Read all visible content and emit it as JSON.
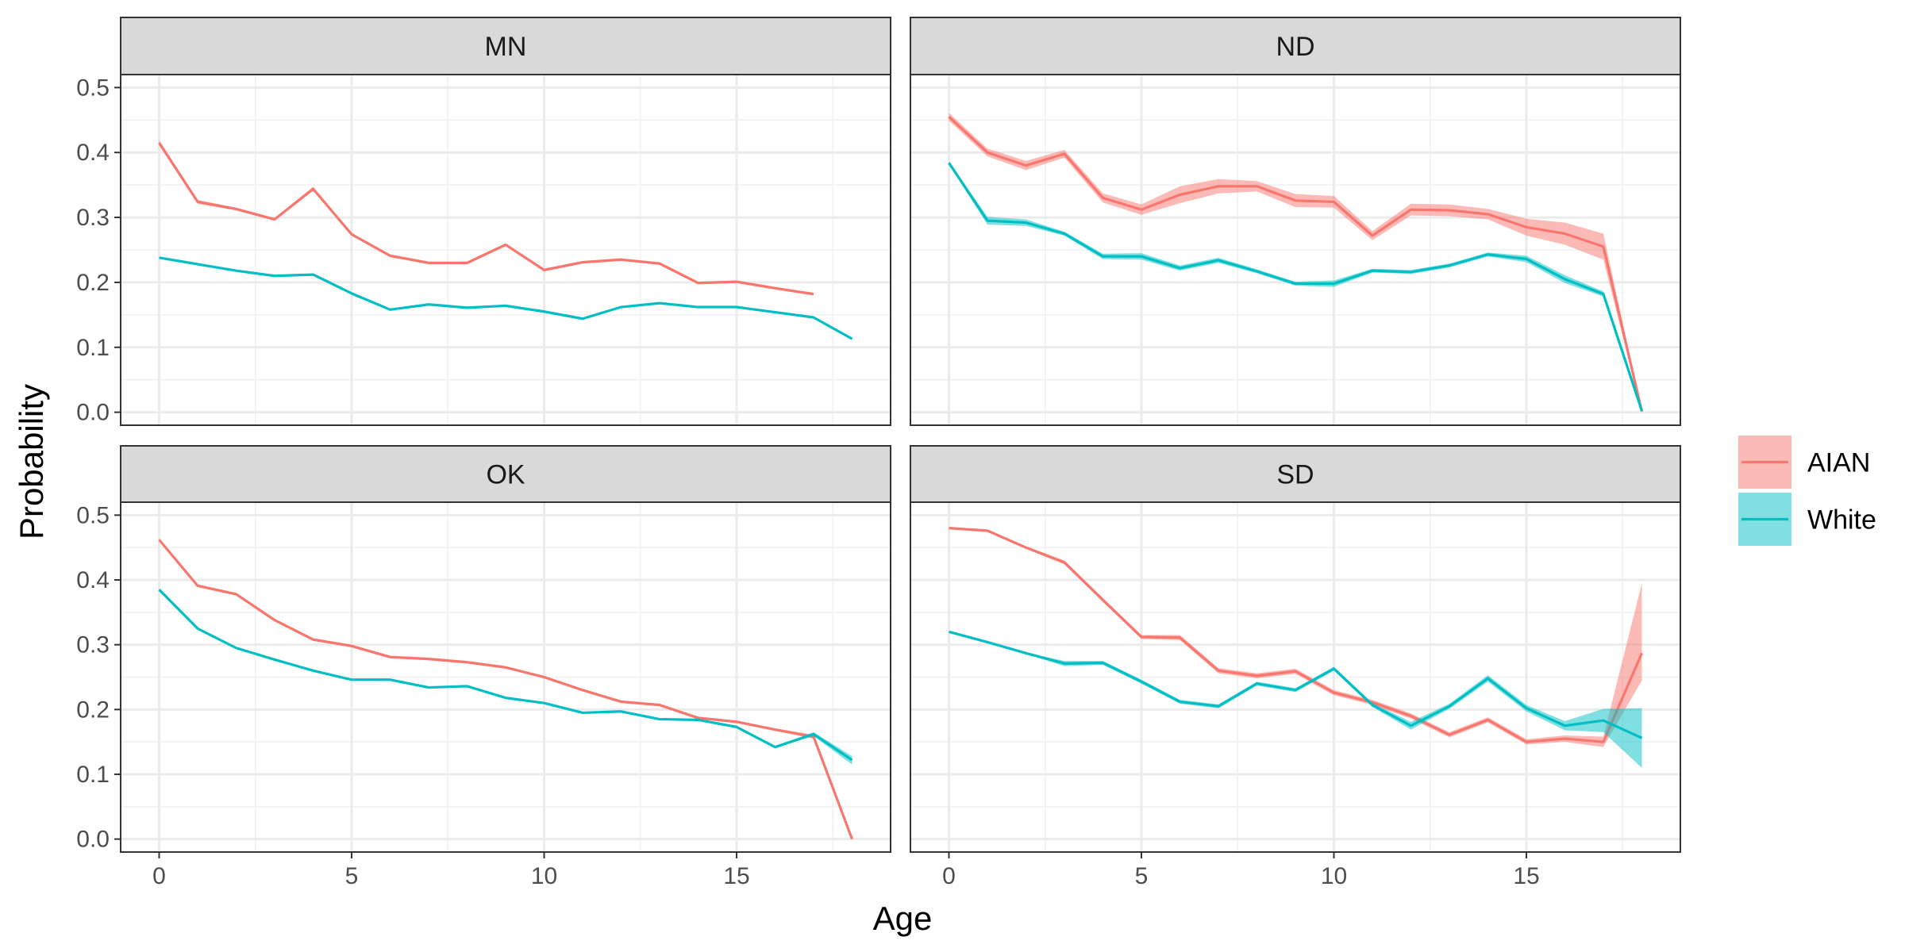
{
  "chart_data": {
    "type": "line",
    "xlabel": "Age",
    "ylabel": "Probability",
    "xlim": [
      -1,
      19
    ],
    "ylim": [
      -0.02,
      0.52
    ],
    "x_ticks": [
      0,
      5,
      10,
      15
    ],
    "y_ticks": [
      0.0,
      0.1,
      0.2,
      0.3,
      0.4,
      0.5
    ],
    "y_tick_labels": [
      "0.0",
      "0.1",
      "0.2",
      "0.3",
      "0.4",
      "0.5"
    ],
    "grid": true,
    "legend_position": "right",
    "legend": [
      {
        "name": "AIAN",
        "color": "#F8766D",
        "fill": "#F8766D"
      },
      {
        "name": "White",
        "color": "#00BFC4",
        "fill": "#00BFC4"
      }
    ],
    "panels": [
      {
        "title": "MN",
        "series": [
          {
            "name": "AIAN",
            "x": [
              0,
              1,
              2,
              3,
              4,
              5,
              6,
              7,
              8,
              9,
              10,
              11,
              12,
              13,
              14,
              15,
              16,
              17
            ],
            "y": [
              0.415,
              0.324,
              0.313,
              0.297,
              0.344,
              0.274,
              0.241,
              0.23,
              0.23,
              0.258,
              0.219,
              0.231,
              0.235,
              0.229,
              0.199,
              0.201,
              0.191,
              0.182
            ],
            "ci_lo": [
              0.411,
              0.321,
              0.311,
              0.295,
              0.341,
              0.272,
              0.239,
              0.228,
              0.228,
              0.256,
              0.217,
              0.229,
              0.233,
              0.227,
              0.197,
              0.199,
              0.189,
              0.18
            ],
            "ci_hi": [
              0.419,
              0.327,
              0.315,
              0.299,
              0.347,
              0.276,
              0.243,
              0.232,
              0.232,
              0.26,
              0.221,
              0.233,
              0.237,
              0.231,
              0.201,
              0.203,
              0.193,
              0.184
            ]
          },
          {
            "name": "White",
            "x": [
              0,
              1,
              2,
              3,
              4,
              5,
              6,
              7,
              8,
              9,
              10,
              11,
              12,
              13,
              14,
              15,
              16,
              17,
              18
            ],
            "y": [
              0.238,
              0.228,
              0.218,
              0.21,
              0.212,
              0.183,
              0.158,
              0.166,
              0.161,
              0.164,
              0.155,
              0.144,
              0.162,
              0.168,
              0.162,
              0.162,
              0.154,
              0.146,
              0.113
            ],
            "ci_lo": [
              0.237,
              0.227,
              0.217,
              0.209,
              0.211,
              0.182,
              0.157,
              0.165,
              0.16,
              0.163,
              0.154,
              0.143,
              0.161,
              0.167,
              0.161,
              0.161,
              0.153,
              0.145,
              0.111
            ],
            "ci_hi": [
              0.239,
              0.229,
              0.219,
              0.211,
              0.213,
              0.184,
              0.159,
              0.167,
              0.162,
              0.165,
              0.156,
              0.145,
              0.163,
              0.169,
              0.163,
              0.163,
              0.155,
              0.147,
              0.115
            ]
          }
        ]
      },
      {
        "title": "ND",
        "series": [
          {
            "name": "AIAN",
            "x": [
              0,
              1,
              2,
              3,
              4,
              5,
              6,
              7,
              8,
              9,
              10,
              11,
              12,
              13,
              14,
              15,
              16,
              17,
              18
            ],
            "y": [
              0.455,
              0.4,
              0.38,
              0.398,
              0.33,
              0.312,
              0.335,
              0.348,
              0.348,
              0.326,
              0.324,
              0.272,
              0.312,
              0.311,
              0.305,
              0.285,
              0.275,
              0.255,
              0.001
            ],
            "ci_lo": [
              0.449,
              0.394,
              0.373,
              0.392,
              0.323,
              0.304,
              0.322,
              0.337,
              0.34,
              0.316,
              0.315,
              0.265,
              0.303,
              0.302,
              0.297,
              0.272,
              0.258,
              0.235,
              0.0
            ],
            "ci_hi": [
              0.461,
              0.406,
              0.387,
              0.404,
              0.337,
              0.32,
              0.348,
              0.359,
              0.356,
              0.336,
              0.333,
              0.279,
              0.321,
              0.32,
              0.313,
              0.298,
              0.292,
              0.275,
              0.002
            ]
          },
          {
            "name": "White",
            "x": [
              0,
              1,
              2,
              3,
              4,
              5,
              6,
              7,
              8,
              9,
              10,
              11,
              12,
              13,
              14,
              15,
              16,
              17,
              18
            ],
            "y": [
              0.384,
              0.295,
              0.292,
              0.275,
              0.24,
              0.24,
              0.222,
              0.234,
              0.217,
              0.198,
              0.198,
              0.218,
              0.216,
              0.226,
              0.243,
              0.236,
              0.205,
              0.182,
              0.002
            ],
            "ci_lo": [
              0.382,
              0.289,
              0.287,
              0.272,
              0.236,
              0.235,
              0.218,
              0.23,
              0.214,
              0.195,
              0.193,
              0.215,
              0.213,
              0.223,
              0.24,
              0.231,
              0.199,
              0.178,
              0.0
            ],
            "ci_hi": [
              0.386,
              0.301,
              0.297,
              0.278,
              0.244,
              0.245,
              0.226,
              0.238,
              0.22,
              0.201,
              0.203,
              0.221,
              0.219,
              0.229,
              0.246,
              0.241,
              0.211,
              0.186,
              0.004
            ]
          }
        ]
      },
      {
        "title": "OK",
        "series": [
          {
            "name": "AIAN",
            "x": [
              0,
              1,
              2,
              3,
              4,
              5,
              6,
              7,
              8,
              9,
              10,
              11,
              12,
              13,
              14,
              15,
              16,
              17,
              18
            ],
            "y": [
              0.462,
              0.391,
              0.378,
              0.338,
              0.308,
              0.298,
              0.281,
              0.278,
              0.273,
              0.265,
              0.25,
              0.23,
              0.212,
              0.207,
              0.187,
              0.181,
              0.169,
              0.158,
              0.0
            ],
            "ci_lo": [
              0.46,
              0.389,
              0.376,
              0.336,
              0.306,
              0.296,
              0.279,
              0.276,
              0.271,
              0.263,
              0.248,
              0.228,
              0.21,
              0.205,
              0.185,
              0.179,
              0.167,
              0.155,
              0.0
            ],
            "ci_hi": [
              0.464,
              0.393,
              0.38,
              0.34,
              0.31,
              0.3,
              0.283,
              0.28,
              0.275,
              0.267,
              0.252,
              0.232,
              0.214,
              0.209,
              0.189,
              0.183,
              0.171,
              0.161,
              0.002
            ]
          },
          {
            "name": "White",
            "x": [
              0,
              1,
              2,
              3,
              4,
              5,
              6,
              7,
              8,
              9,
              10,
              11,
              12,
              13,
              14,
              15,
              16,
              17,
              18
            ],
            "y": [
              0.385,
              0.325,
              0.295,
              0.277,
              0.26,
              0.246,
              0.246,
              0.234,
              0.236,
              0.218,
              0.21,
              0.195,
              0.197,
              0.185,
              0.184,
              0.173,
              0.142,
              0.162,
              0.122
            ],
            "ci_lo": [
              0.384,
              0.324,
              0.294,
              0.276,
              0.259,
              0.245,
              0.245,
              0.233,
              0.235,
              0.217,
              0.209,
              0.194,
              0.196,
              0.184,
              0.183,
              0.172,
              0.141,
              0.159,
              0.115
            ],
            "ci_hi": [
              0.386,
              0.326,
              0.296,
              0.278,
              0.261,
              0.247,
              0.247,
              0.235,
              0.237,
              0.219,
              0.211,
              0.196,
              0.198,
              0.186,
              0.185,
              0.174,
              0.143,
              0.165,
              0.128
            ]
          }
        ]
      },
      {
        "title": "SD",
        "series": [
          {
            "name": "AIAN",
            "x": [
              0,
              1,
              2,
              3,
              4,
              5,
              6,
              7,
              8,
              9,
              10,
              11,
              12,
              13,
              14,
              15,
              16,
              17,
              18
            ],
            "y": [
              0.48,
              0.476,
              0.45,
              0.427,
              0.369,
              0.312,
              0.311,
              0.26,
              0.252,
              0.259,
              0.226,
              0.211,
              0.19,
              0.161,
              0.184,
              0.15,
              0.155,
              0.15,
              0.287
            ],
            "ci_lo": [
              0.478,
              0.474,
              0.448,
              0.424,
              0.366,
              0.309,
              0.307,
              0.256,
              0.248,
              0.255,
              0.222,
              0.207,
              0.186,
              0.157,
              0.18,
              0.146,
              0.15,
              0.142,
              0.245
            ],
            "ci_hi": [
              0.482,
              0.478,
              0.452,
              0.43,
              0.372,
              0.315,
              0.315,
              0.264,
              0.256,
              0.263,
              0.23,
              0.215,
              0.194,
              0.165,
              0.188,
              0.154,
              0.16,
              0.158,
              0.395
            ]
          },
          {
            "name": "White",
            "x": [
              0,
              1,
              2,
              3,
              4,
              5,
              6,
              7,
              8,
              9,
              10,
              11,
              12,
              13,
              14,
              15,
              16,
              17,
              18
            ],
            "y": [
              0.32,
              0.304,
              0.287,
              0.271,
              0.272,
              0.243,
              0.212,
              0.205,
              0.24,
              0.23,
              0.263,
              0.207,
              0.175,
              0.205,
              0.248,
              0.202,
              0.175,
              0.183,
              0.156
            ],
            "ci_lo": [
              0.319,
              0.303,
              0.286,
              0.267,
              0.269,
              0.24,
              0.209,
              0.202,
              0.237,
              0.227,
              0.26,
              0.204,
              0.169,
              0.201,
              0.243,
              0.197,
              0.168,
              0.165,
              0.11
            ],
            "ci_hi": [
              0.321,
              0.305,
              0.288,
              0.275,
              0.275,
              0.246,
              0.215,
              0.208,
              0.243,
              0.233,
              0.266,
              0.21,
              0.181,
              0.209,
              0.253,
              0.207,
              0.182,
              0.201,
              0.202
            ]
          }
        ]
      }
    ]
  }
}
